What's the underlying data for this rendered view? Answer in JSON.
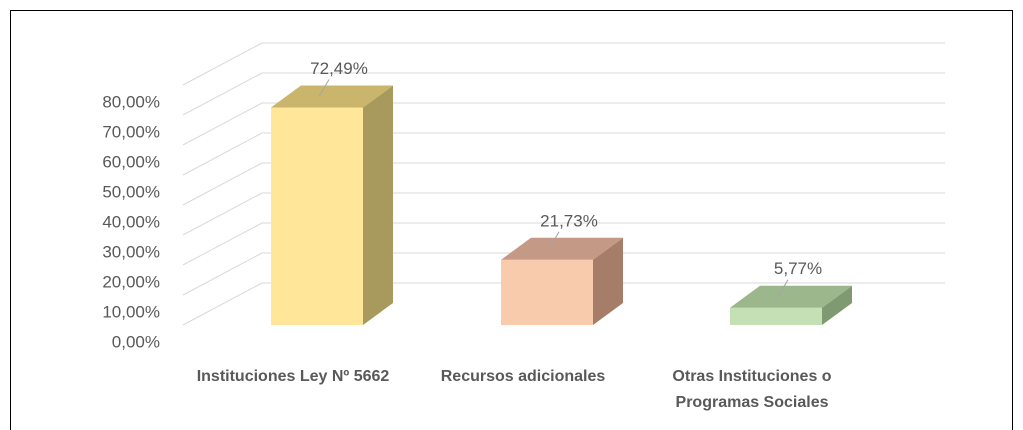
{
  "chart_data": {
    "type": "bar3d",
    "categories": [
      "Instituciones Ley Nº 5662",
      "Recursos adicionales",
      "Otras Instituciones o Programas Sociales"
    ],
    "values": [
      72.49,
      21.73,
      5.77
    ],
    "value_labels": [
      "72,49%",
      "21,73%",
      "5,77%"
    ],
    "colors": [
      "#FFE699",
      "#F8CBAD",
      "#C5E0B4"
    ],
    "side_colors": [
      "#A8995C",
      "#A67D68",
      "#7F9A70"
    ],
    "top_colors": [
      "#C9B56B",
      "#C49A86",
      "#9CB78B"
    ],
    "ylim": [
      0,
      80
    ],
    "yticks": [
      {
        "value": 0,
        "label": "0,00%"
      },
      {
        "value": 10,
        "label": "10,00%"
      },
      {
        "value": 20,
        "label": "20,00%"
      },
      {
        "value": 30,
        "label": "30,00%"
      },
      {
        "value": 40,
        "label": "40,00%"
      },
      {
        "value": 50,
        "label": "50,00%"
      },
      {
        "value": 60,
        "label": "60,00%"
      },
      {
        "value": 70,
        "label": "70,00%"
      },
      {
        "value": 80,
        "label": "80,00%"
      }
    ],
    "grid": true
  }
}
